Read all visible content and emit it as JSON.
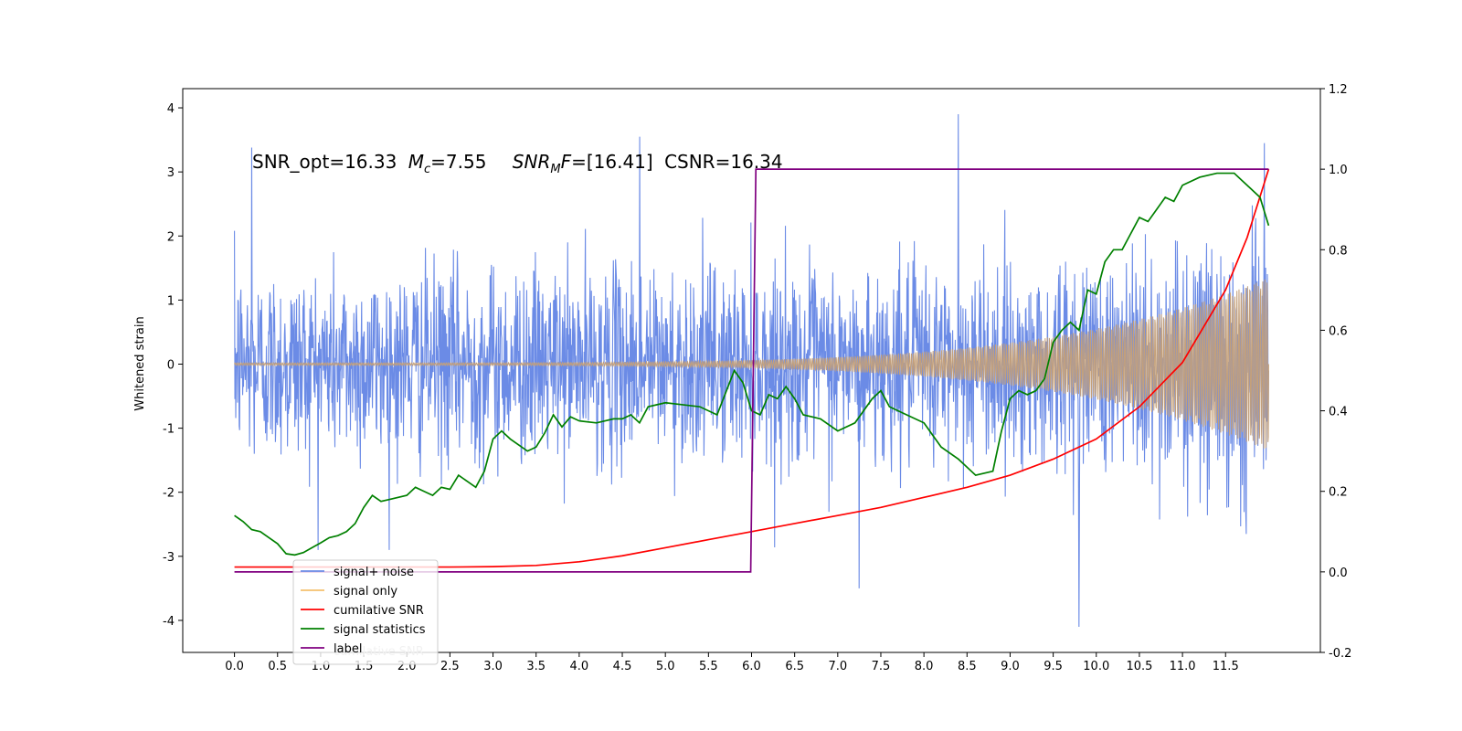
{
  "chart_data": {
    "type": "line",
    "ylabel": "Whitened strain",
    "annotation": "SNR_opt=16.33 Mc=7.55  SNRMF=[16.41] CSNR=16.34",
    "annotation_parts": {
      "snr_opt": "SNR_opt=16.33",
      "mc_sym": "M",
      "mc_sub": "c",
      "mc_val": "=7.55",
      "snr_sym": "SNR",
      "snr_sub": "M",
      "snr_f": "F",
      "snr_val": "=[16.41]",
      "csnr": "CSNR=16.34"
    },
    "xlim": [
      -0.6,
      12.6
    ],
    "xticks": [
      "0.0",
      "0.5",
      "1.0",
      "1.5",
      "2.0",
      "2.5",
      "3.0",
      "3.5",
      "4.0",
      "4.5",
      "5.0",
      "5.5",
      "6.0",
      "6.5",
      "7.0",
      "7.5",
      "8.0",
      "8.5",
      "9.0",
      "9.5",
      "10.0",
      "10.5",
      "11.0",
      "11.5"
    ],
    "ylim_left": [
      -4.5,
      4.3
    ],
    "yticks_left": [
      "4",
      "3",
      "2",
      "1",
      "0",
      "-1",
      "-2",
      "-3",
      "-4"
    ],
    "ylim_right": [
      -0.2,
      1.2
    ],
    "yticks_right": [
      "1.2",
      "1.0",
      "0.8",
      "0.6",
      "0.4",
      "0.2",
      "0.0",
      "-0.2"
    ],
    "grid": false,
    "legend_position": "lower-left",
    "legend_overlapped_text": "cumilative SNR",
    "series": [
      {
        "name": "signal+ noise",
        "axis": "left",
        "color": "#6b8be6",
        "noise_sigma": 0.75,
        "duration": 12.0,
        "peak_values": [
          [
            0.2,
            3.38
          ],
          [
            4.7,
            3.55
          ],
          [
            8.4,
            3.9
          ],
          [
            9.8,
            -4.1
          ],
          [
            11.95,
            3.45
          ],
          [
            7.25,
            -3.5
          ]
        ]
      },
      {
        "name": "signal only",
        "axis": "left",
        "color": "#f5c06e",
        "amplitude_start": 0.02,
        "amplitude_end": 1.35,
        "duration": 12.0
      },
      {
        "name": "cumilative SNR",
        "axis": "right",
        "color": "#ff0000",
        "x": [
          0.0,
          2.5,
          3.0,
          3.5,
          4.0,
          4.5,
          5.0,
          5.5,
          6.0,
          6.5,
          7.0,
          7.5,
          8.0,
          8.5,
          9.0,
          9.5,
          10.0,
          10.5,
          11.0,
          11.5,
          11.75,
          12.0
        ],
        "values": [
          0.012,
          0.012,
          0.013,
          0.016,
          0.025,
          0.04,
          0.06,
          0.08,
          0.1,
          0.12,
          0.14,
          0.16,
          0.185,
          0.21,
          0.24,
          0.28,
          0.33,
          0.41,
          0.52,
          0.7,
          0.83,
          1.0
        ]
      },
      {
        "name": "signal statistics",
        "axis": "right",
        "color": "#008000",
        "x": [
          0.0,
          0.1,
          0.2,
          0.3,
          0.4,
          0.5,
          0.6,
          0.7,
          0.8,
          0.9,
          1.0,
          1.1,
          1.2,
          1.3,
          1.4,
          1.5,
          1.6,
          1.7,
          1.8,
          2.0,
          2.1,
          2.2,
          2.3,
          2.4,
          2.5,
          2.6,
          2.7,
          2.8,
          2.9,
          3.0,
          3.1,
          3.2,
          3.4,
          3.5,
          3.6,
          3.7,
          3.8,
          3.9,
          4.0,
          4.2,
          4.4,
          4.5,
          4.6,
          4.7,
          4.8,
          5.0,
          5.2,
          5.4,
          5.6,
          5.8,
          5.9,
          6.0,
          6.1,
          6.2,
          6.3,
          6.4,
          6.5,
          6.6,
          6.8,
          7.0,
          7.2,
          7.4,
          7.5,
          7.6,
          7.8,
          8.0,
          8.2,
          8.4,
          8.6,
          8.8,
          8.9,
          9.0,
          9.1,
          9.2,
          9.3,
          9.4,
          9.5,
          9.6,
          9.7,
          9.8,
          9.9,
          10.0,
          10.1,
          10.2,
          10.3,
          10.4,
          10.5,
          10.6,
          10.7,
          10.8,
          10.9,
          11.0,
          11.2,
          11.4,
          11.5,
          11.6,
          11.7,
          11.8,
          11.9,
          12.0
        ],
        "values": [
          0.14,
          0.125,
          0.105,
          0.1,
          0.085,
          0.07,
          0.045,
          0.042,
          0.048,
          0.06,
          0.072,
          0.085,
          0.09,
          0.1,
          0.12,
          0.16,
          0.19,
          0.175,
          0.18,
          0.19,
          0.21,
          0.2,
          0.19,
          0.21,
          0.205,
          0.24,
          0.225,
          0.21,
          0.25,
          0.33,
          0.35,
          0.33,
          0.3,
          0.31,
          0.345,
          0.39,
          0.36,
          0.385,
          0.375,
          0.37,
          0.38,
          0.38,
          0.39,
          0.37,
          0.41,
          0.42,
          0.415,
          0.41,
          0.39,
          0.5,
          0.47,
          0.4,
          0.39,
          0.44,
          0.43,
          0.46,
          0.43,
          0.39,
          0.38,
          0.35,
          0.37,
          0.43,
          0.45,
          0.41,
          0.39,
          0.37,
          0.31,
          0.28,
          0.24,
          0.25,
          0.35,
          0.43,
          0.45,
          0.44,
          0.45,
          0.48,
          0.57,
          0.6,
          0.62,
          0.6,
          0.7,
          0.69,
          0.77,
          0.8,
          0.8,
          0.84,
          0.88,
          0.87,
          0.9,
          0.93,
          0.92,
          0.96,
          0.98,
          0.99,
          0.99,
          0.99,
          0.97,
          0.95,
          0.93,
          0.86
        ]
      },
      {
        "name": "label",
        "axis": "right",
        "color": "#800080",
        "x": [
          0.0,
          5.99,
          6.05,
          12.0
        ],
        "values": [
          0.0,
          0.0,
          1.0,
          1.0
        ]
      }
    ]
  }
}
